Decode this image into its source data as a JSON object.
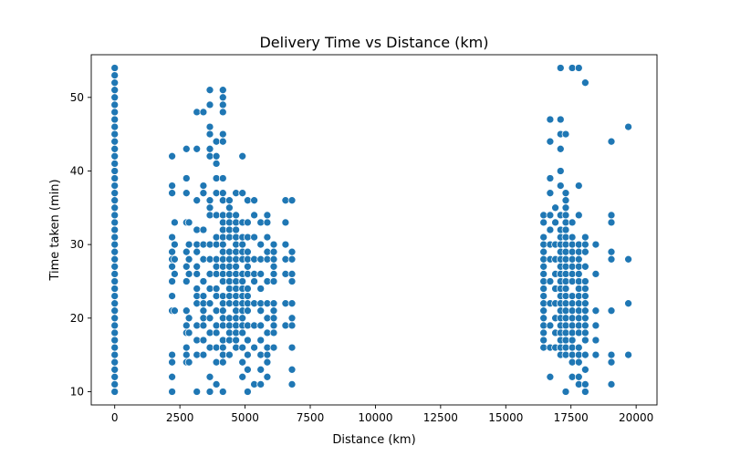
{
  "chart_data": {
    "type": "scatter",
    "title": "Delivery Time vs Distance (km)",
    "xlabel": "Distance (km)",
    "ylabel": "Time taken (min)",
    "xlim": [
      -900,
      20800
    ],
    "ylim": [
      8.2,
      55.8
    ],
    "xticks": [
      0,
      2500,
      5000,
      7500,
      10000,
      12500,
      15000,
      17500,
      20000
    ],
    "xtick_labels": [
      "0",
      "2500",
      "5000",
      "7500",
      "10000",
      "12500",
      "15000",
      "17500",
      "20000"
    ],
    "yticks": [
      10,
      20,
      30,
      40,
      50
    ],
    "ytick_labels": [
      "10",
      "20",
      "30",
      "40",
      "50"
    ],
    "grid": false,
    "legend": false,
    "marker_color": "#1f77b4",
    "x_columns": [
      0,
      2200,
      2300,
      2750,
      2850,
      3150,
      3400,
      3650,
      3900,
      4150,
      4400,
      4650,
      4900,
      5100,
      5350,
      5600,
      5850,
      6100,
      6550,
      6800,
      16450,
      16700,
      16900,
      17100,
      17300,
      17550,
      17800,
      18050,
      18450,
      19050,
      19700
    ],
    "y_by_column": [
      [
        10,
        11,
        12,
        13,
        14,
        15,
        16,
        17,
        18,
        19,
        20,
        21,
        22,
        23,
        24,
        25,
        26,
        27,
        28,
        29,
        30,
        31,
        32,
        33,
        34,
        35,
        36,
        37,
        38,
        39,
        40,
        41,
        42,
        43,
        44,
        45,
        46,
        47,
        48,
        49,
        50,
        51,
        52,
        53,
        54
      ],
      [
        10,
        12,
        14,
        15,
        21,
        23,
        25,
        27,
        28,
        29,
        31,
        37,
        38,
        42
      ],
      [
        21,
        26,
        28,
        30,
        33
      ],
      [
        14,
        15,
        16,
        18,
        19,
        21,
        25,
        27,
        29,
        33,
        37,
        39,
        43
      ],
      [
        14,
        18,
        20,
        26,
        28,
        30,
        33
      ],
      [
        10,
        15,
        17,
        19,
        22,
        23,
        24,
        26,
        27,
        29,
        30,
        32,
        36,
        43,
        48
      ],
      [
        15,
        17,
        19,
        20,
        21,
        22,
        23,
        25,
        28,
        30,
        32,
        37,
        38,
        48
      ],
      [
        10,
        12,
        16,
        18,
        20,
        22,
        24,
        26,
        28,
        30,
        34,
        35,
        36,
        42,
        43,
        45,
        46,
        49,
        51
      ],
      [
        11,
        14,
        16,
        18,
        19,
        21,
        23,
        24,
        26,
        27,
        28,
        30,
        31,
        34,
        37,
        39,
        41,
        42,
        44
      ],
      [
        10,
        14,
        15,
        16,
        17,
        19,
        20,
        21,
        22,
        23,
        25,
        26,
        27,
        28,
        29,
        30,
        31,
        32,
        33,
        34,
        36,
        37,
        39,
        44,
        45,
        48,
        49,
        50,
        51
      ],
      [
        15,
        17,
        18,
        19,
        20,
        22,
        23,
        24,
        25,
        26,
        27,
        28,
        29,
        31,
        32,
        33,
        34,
        35,
        36
      ],
      [
        16,
        17,
        18,
        19,
        20,
        21,
        22,
        23,
        24,
        25,
        26,
        27,
        28,
        29,
        30,
        31,
        32,
        33,
        34,
        37
      ],
      [
        12,
        14,
        16,
        18,
        19,
        20,
        21,
        22,
        23,
        24,
        25,
        26,
        28,
        29,
        30,
        31,
        33,
        37,
        42
      ],
      [
        10,
        13,
        15,
        17,
        19,
        21,
        22,
        23,
        24,
        26,
        27,
        28,
        29,
        31,
        33,
        36
      ],
      [
        11,
        16,
        19,
        22,
        25,
        26,
        28,
        31,
        34,
        36
      ],
      [
        11,
        13,
        15,
        17,
        19,
        21,
        22,
        24,
        26,
        28,
        30,
        33
      ],
      [
        12,
        14,
        15,
        16,
        18,
        20,
        22,
        25,
        28,
        29,
        31,
        33,
        34
      ],
      [
        16,
        18,
        19,
        20,
        21,
        22,
        25,
        26,
        27,
        28,
        29,
        30
      ],
      [
        19,
        22,
        26,
        28,
        30,
        33,
        36
      ],
      [
        11,
        13,
        16,
        19,
        20,
        22,
        25,
        26,
        28,
        29,
        36
      ],
      [
        16,
        17,
        18,
        19,
        20,
        21,
        22,
        23,
        24,
        25,
        26,
        27,
        28,
        29,
        30,
        31,
        33,
        34
      ],
      [
        12,
        16,
        19,
        22,
        25,
        28,
        30,
        32,
        34,
        37,
        39,
        44,
        47
      ],
      [
        16,
        18,
        20,
        22,
        24,
        26,
        28,
        30,
        33,
        35
      ],
      [
        15,
        16,
        17,
        18,
        19,
        20,
        21,
        22,
        23,
        24,
        25,
        26,
        27,
        28,
        29,
        30,
        31,
        32,
        34,
        38,
        40,
        43,
        45,
        47,
        54
      ],
      [
        10,
        15,
        16,
        17,
        18,
        19,
        20,
        21,
        22,
        23,
        24,
        25,
        26,
        27,
        28,
        29,
        30,
        31,
        32,
        33,
        34,
        35,
        36,
        37,
        45
      ],
      [
        12,
        14,
        15,
        16,
        17,
        18,
        19,
        20,
        21,
        22,
        23,
        25,
        26,
        27,
        28,
        29,
        30,
        31,
        33,
        54
      ],
      [
        11,
        12,
        14,
        15,
        16,
        18,
        19,
        20,
        21,
        22,
        23,
        24,
        25,
        26,
        27,
        28,
        29,
        30,
        34,
        38,
        54
      ],
      [
        10,
        11,
        13,
        15,
        17,
        18,
        19,
        20,
        21,
        22,
        23,
        24,
        25,
        27,
        29,
        30,
        31,
        52
      ],
      [
        15,
        17,
        19,
        21,
        26,
        30
      ],
      [
        11,
        14,
        15,
        21,
        28,
        29,
        33,
        34,
        44
      ],
      [
        15,
        22,
        28,
        46
      ]
    ]
  }
}
